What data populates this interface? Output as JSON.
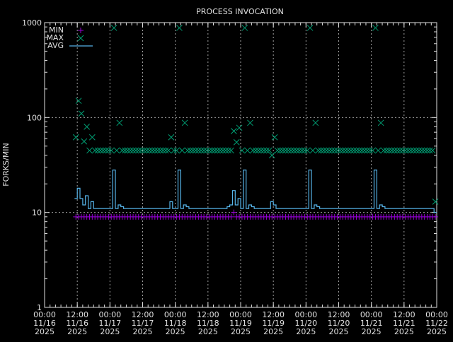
{
  "chart_data": {
    "type": "line",
    "title": "PROCESS INVOCATION",
    "xlabel": "",
    "ylabel": "FORKS/MIN",
    "yscale": "log",
    "ylim": [
      1,
      1000
    ],
    "xlim": [
      "2025-11-16 00:00",
      "2025-11-22 00:00"
    ],
    "yticks": [
      "1",
      "10",
      "100",
      "1000"
    ],
    "xticks": [
      {
        "time": "2025-11-16 00:00",
        "label": [
          "00:00",
          "11/16",
          "2025"
        ]
      },
      {
        "time": "2025-11-16 12:00",
        "label": [
          "12:00",
          "11/16",
          "2025"
        ]
      },
      {
        "time": "2025-11-17 00:00",
        "label": [
          "00:00",
          "11/17",
          "2025"
        ]
      },
      {
        "time": "2025-11-17 12:00",
        "label": [
          "12:00",
          "11/17",
          "2025"
        ]
      },
      {
        "time": "2025-11-18 00:00",
        "label": [
          "00:00",
          "11/18",
          "2025"
        ]
      },
      {
        "time": "2025-11-18 12:00",
        "label": [
          "12:00",
          "11/18",
          "2025"
        ]
      },
      {
        "time": "2025-11-19 00:00",
        "label": [
          "00:00",
          "11/19",
          "2025"
        ]
      },
      {
        "time": "2025-11-19 12:00",
        "label": [
          "12:00",
          "11/19",
          "2025"
        ]
      },
      {
        "time": "2025-11-20 00:00",
        "label": [
          "00:00",
          "11/20",
          "2025"
        ]
      },
      {
        "time": "2025-11-20 12:00",
        "label": [
          "12:00",
          "11/20",
          "2025"
        ]
      },
      {
        "time": "2025-11-21 00:00",
        "label": [
          "00:00",
          "11/21",
          "2025"
        ]
      },
      {
        "time": "2025-11-21 12:00",
        "label": [
          "12:00",
          "11/21",
          "2025"
        ]
      },
      {
        "time": "2025-11-22 00:00",
        "label": [
          "00:00",
          "11/22",
          "2025"
        ]
      }
    ],
    "grid": true,
    "legend_position": "top-left",
    "colors": {
      "min": "#9400d3",
      "max": "#009e73",
      "avg": "#56b4e9",
      "grid": "#a0a0a0",
      "axis": "#e0e0e0"
    },
    "x_days": [
      {
        "date": "2025-11-16",
        "first_hour": 11
      },
      {
        "date": "2025-11-17",
        "first_hour": 0
      },
      {
        "date": "2025-11-18",
        "first_hour": 0
      },
      {
        "date": "2025-11-19",
        "first_hour": 0
      },
      {
        "date": "2025-11-20",
        "first_hour": 0
      },
      {
        "date": "2025-11-21",
        "first_hour": 0
      }
    ],
    "series": [
      {
        "name": "MIN",
        "marker": "plus",
        "values": [
          [
            9,
            9,
            9,
            9,
            9,
            9,
            9,
            9,
            9,
            9,
            9,
            9,
            9
          ],
          [
            9,
            9,
            9,
            9,
            9,
            9,
            9,
            9,
            9,
            9,
            9,
            9,
            9,
            9,
            9,
            9,
            9,
            9,
            9,
            9,
            9,
            9,
            9,
            9
          ],
          [
            9,
            9,
            9,
            9,
            9,
            9,
            9,
            9,
            9,
            9,
            9,
            9,
            9,
            9,
            9,
            9,
            9,
            9,
            9,
            9,
            9,
            10,
            9,
            9
          ],
          [
            9,
            9,
            9,
            9,
            9,
            9,
            9,
            9,
            9,
            9,
            9,
            9,
            9,
            9,
            9,
            9,
            9,
            9,
            9,
            9,
            9,
            9,
            9,
            9
          ],
          [
            9,
            9,
            9,
            9,
            9,
            9,
            9,
            9,
            9,
            9,
            9,
            9,
            9,
            9,
            9,
            9,
            9,
            9,
            9,
            9,
            9,
            9,
            9,
            9
          ],
          [
            9,
            9,
            9,
            9,
            9,
            9,
            9,
            9,
            9,
            9,
            9,
            9,
            9,
            9,
            9,
            9,
            9,
            9,
            9,
            9,
            9,
            9,
            9,
            9
          ]
        ]
      },
      {
        "name": "MAX",
        "marker": "cross",
        "values": [
          [
            62,
            150,
            110,
            56,
            80,
            45,
            62,
            45,
            45,
            45,
            45,
            45,
            45
          ],
          [
            45,
            880,
            45,
            88,
            45,
            45,
            45,
            45,
            45,
            45,
            45,
            45,
            45,
            45,
            45,
            45,
            45,
            45,
            45,
            45,
            45,
            45,
            62,
            45
          ],
          [
            45,
            880,
            45,
            88,
            45,
            45,
            45,
            45,
            45,
            45,
            45,
            45,
            45,
            45,
            45,
            45,
            45,
            45,
            45,
            45,
            45,
            72,
            55,
            78
          ],
          [
            45,
            880,
            45,
            88,
            45,
            45,
            45,
            45,
            45,
            45,
            45,
            40,
            62,
            45,
            45,
            45,
            45,
            45,
            45,
            45,
            45,
            45,
            45,
            45
          ],
          [
            45,
            880,
            45,
            88,
            45,
            45,
            45,
            45,
            45,
            45,
            45,
            45,
            45,
            45,
            45,
            45,
            45,
            45,
            45,
            45,
            45,
            45,
            45,
            45
          ],
          [
            45,
            880,
            45,
            88,
            45,
            45,
            45,
            45,
            45,
            45,
            45,
            45,
            45,
            45,
            45,
            45,
            45,
            45,
            45,
            45,
            45,
            45,
            45,
            13
          ]
        ]
      },
      {
        "name": "AVG",
        "marker": "step-line",
        "values": [
          [
            14,
            18,
            14,
            12,
            15,
            11,
            13,
            11,
            11,
            11,
            11,
            11,
            11
          ],
          [
            11,
            28,
            11,
            12,
            11.5,
            11,
            11,
            11,
            11,
            11,
            11,
            11,
            11,
            11,
            11,
            11,
            11,
            11,
            11,
            11,
            11,
            11,
            13,
            11
          ],
          [
            11,
            28,
            11,
            12,
            11.5,
            11,
            11,
            11,
            11,
            11,
            11,
            11,
            11,
            11,
            11,
            11,
            11,
            11,
            11,
            11.5,
            12,
            17,
            12,
            14
          ],
          [
            11,
            28,
            11,
            12,
            11.5,
            11,
            11,
            11,
            11,
            11,
            11,
            13,
            12,
            11,
            11,
            11,
            11,
            11,
            11,
            11,
            11,
            11,
            11,
            11
          ],
          [
            11,
            28,
            11,
            12,
            11.5,
            11,
            11,
            11,
            11,
            11,
            11,
            11,
            11,
            11,
            11,
            11,
            11,
            11,
            11,
            11,
            11,
            11,
            11,
            11
          ],
          [
            11,
            28,
            11,
            12,
            11.5,
            11,
            11,
            11,
            11,
            11,
            11,
            11,
            11,
            11,
            11,
            11,
            11,
            11,
            11,
            11,
            11,
            11,
            11,
            10
          ]
        ]
      }
    ]
  }
}
